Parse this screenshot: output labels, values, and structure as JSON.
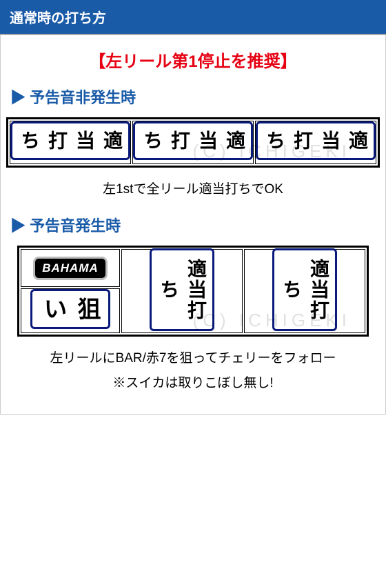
{
  "header": {
    "title": "通常時の打ち方"
  },
  "rec_title": "【左リール第1停止を推奨】",
  "watermark": "(C) ICHIGEKI",
  "section1": {
    "heading": "▶ 予告音非発生時",
    "reels": [
      "適当打ち",
      "適当打ち",
      "適当打ち"
    ],
    "caption": "左1stで全リール適当打ちでOK"
  },
  "section2": {
    "heading": "▶ 予告音発生時",
    "left_top": "BAHAMA",
    "left_label": "狙い",
    "mid_label": "適当打ち",
    "right_label": "適当打ち",
    "caption_line1": "左リールにBAR/赤7を狙ってチェリーをフォロー",
    "caption_line2": "※スイカは取りこぼし無し!"
  },
  "colors": {
    "header_bg": "#1a5ba8",
    "accent_red": "#e60012",
    "reel_border": "#0a1a7a"
  }
}
